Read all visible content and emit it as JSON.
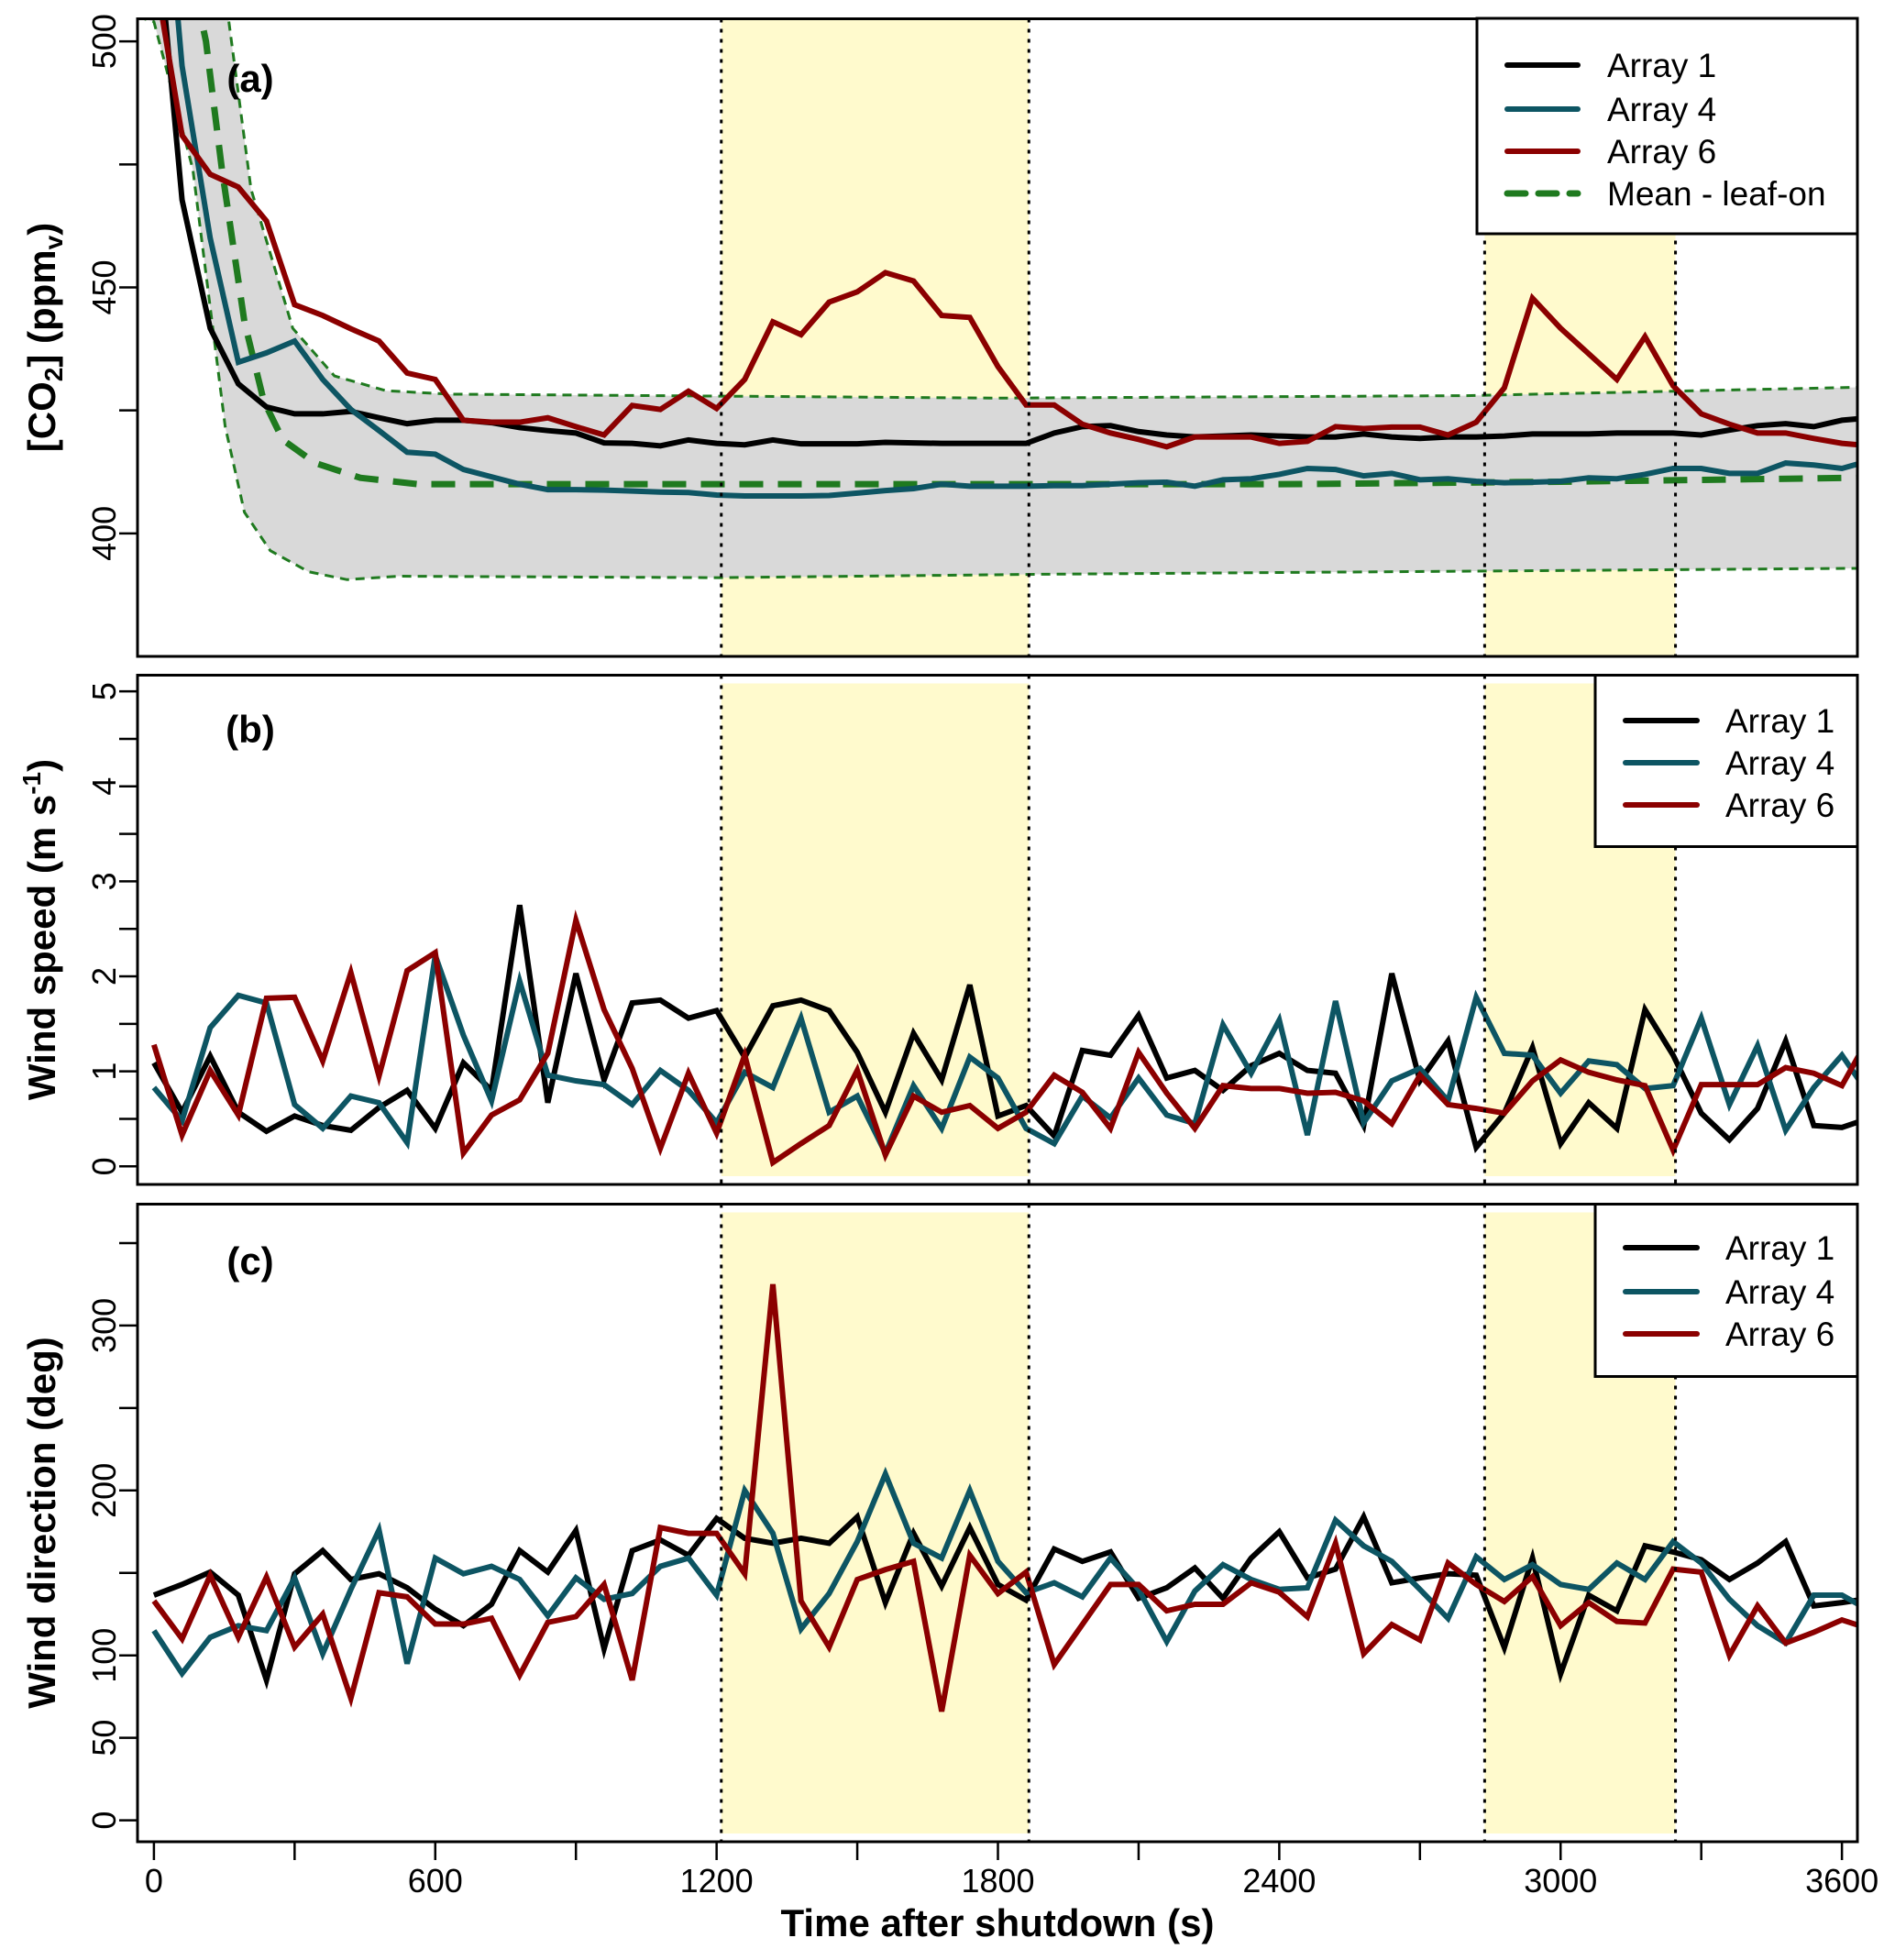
{
  "chart_data": [
    {
      "type": "line",
      "panel_label": "(a)",
      "ylabel": {
        "pre": "[CO",
        "sub": "2",
        "mid": "] (ppm",
        "sub2": "v",
        "post": ")"
      },
      "xlim": [
        -35,
        3633
      ],
      "ylim": [
        375,
        504.6
      ],
      "y_ticks": [
        400,
        425,
        450,
        475,
        500
      ],
      "y_tick_labels": [
        "400",
        "",
        "450",
        "",
        "500"
      ],
      "grid": false,
      "legend_position": "top-right",
      "highlight_intervals": [
        [
          1210,
          1866
        ],
        [
          2838,
          3245
        ]
      ],
      "x": [
        0,
        60,
        120,
        180,
        240,
        300,
        360,
        420,
        480,
        540,
        600,
        660,
        720,
        780,
        840,
        900,
        960,
        1020,
        1080,
        1140,
        1200,
        1260,
        1320,
        1380,
        1440,
        1500,
        1560,
        1620,
        1680,
        1740,
        1800,
        1860,
        1920,
        1980,
        2040,
        2100,
        2160,
        2220,
        2280,
        2340,
        2400,
        2460,
        2520,
        2580,
        2640,
        2700,
        2760,
        2820,
        2880,
        2940,
        3000,
        3060,
        3120,
        3180,
        3240,
        3300,
        3360,
        3420,
        3480,
        3540,
        3600,
        3660
      ],
      "series": [
        {
          "name": "Array 1",
          "color": "#000000",
          "values": [
            530,
            467.8,
            441.7,
            430.4,
            425.7,
            424.3,
            424.3,
            424.8,
            423.5,
            422.3,
            423,
            423,
            422.5,
            421.5,
            420.9,
            420.4,
            418.4,
            418.3,
            417.8,
            419,
            418.3,
            418,
            419,
            418.2,
            418.2,
            418.2,
            418.5,
            418.4,
            418.3,
            418.3,
            418.3,
            418.3,
            420.4,
            421.7,
            421.9,
            420.7,
            420,
            419.6,
            419.8,
            420,
            419.8,
            419.6,
            419.6,
            420.2,
            419.6,
            419.3,
            419.6,
            419.6,
            419.8,
            420.2,
            420.2,
            420.2,
            420.4,
            420.4,
            420.4,
            420,
            421,
            421.9,
            422.3,
            421.7,
            423,
            423.5
          ]
        },
        {
          "name": "Array 4",
          "color": "#0d5563",
          "values": [
            560,
            495,
            460,
            434.8,
            436.7,
            439.1,
            431.3,
            425.2,
            420.9,
            416.5,
            416.1,
            413,
            411.5,
            410,
            408.9,
            408.9,
            408.8,
            408.6,
            408.4,
            408.3,
            407.8,
            407.6,
            407.6,
            407.6,
            407.7,
            408.2,
            408.7,
            409.1,
            410,
            409.6,
            409.6,
            409.6,
            409.7,
            409.7,
            410,
            410.3,
            410.4,
            409.6,
            410.9,
            411.1,
            412,
            413.2,
            413,
            411.7,
            412.2,
            410.9,
            411.1,
            410.6,
            410.3,
            410.4,
            410.6,
            411.3,
            411.1,
            412,
            413.2,
            413.2,
            412.2,
            412.2,
            414.3,
            413.9,
            413.2,
            414.8
          ]
        },
        {
          "name": "Array 6",
          "color": "#8b0000",
          "values": [
            515,
            480.9,
            473,
            470.4,
            463.5,
            446.5,
            444.3,
            441.6,
            439.1,
            432.6,
            431.3,
            423,
            422.6,
            422.6,
            423.5,
            421.7,
            420,
            426,
            425.2,
            428.9,
            425.4,
            431.3,
            443,
            440.4,
            447,
            449.1,
            453,
            451.3,
            444.3,
            443.9,
            433.9,
            426.1,
            426.1,
            422.2,
            420.4,
            419.1,
            417.6,
            419.6,
            419.6,
            419.6,
            418.3,
            418.7,
            421.7,
            421.3,
            421.6,
            421.6,
            420,
            422.6,
            429.6,
            447.8,
            441.7,
            436.5,
            431.3,
            440,
            430,
            424.3,
            422.2,
            420.4,
            420.4,
            419.3,
            418.3,
            417.8
          ]
        }
      ],
      "mean": {
        "name": "Mean - leaf-on",
        "color": "#1f7a1f",
        "points": [
          [
            0,
            540
          ],
          [
            100,
            505
          ],
          [
            111,
            500
          ],
          [
            145,
            474
          ],
          [
            193,
            443
          ],
          [
            234,
            427
          ],
          [
            275,
            419
          ],
          [
            344,
            414.3
          ],
          [
            440,
            411.3
          ],
          [
            563,
            410
          ],
          [
            1200,
            410
          ],
          [
            2400,
            410
          ],
          [
            3000,
            410.5
          ],
          [
            3633,
            411.3
          ]
        ]
      },
      "envelope": {
        "color": "#d9d9d9",
        "upper": [
          [
            -35,
            560
          ],
          [
            100,
            540
          ],
          [
            159,
            504.6
          ],
          [
            207,
            470
          ],
          [
            296,
            441.7
          ],
          [
            385,
            432
          ],
          [
            495,
            429
          ],
          [
            632,
            428.3
          ],
          [
            1800,
            427.5
          ],
          [
            2800,
            428
          ],
          [
            3633,
            429.7
          ]
        ],
        "lower": [
          [
            -35,
            505
          ],
          [
            0,
            504
          ],
          [
            83,
            474
          ],
          [
            152,
            421.7
          ],
          [
            193,
            404.3
          ],
          [
            248,
            396.5
          ],
          [
            330,
            392.2
          ],
          [
            412,
            390.6
          ],
          [
            522,
            391.3
          ],
          [
            1200,
            391
          ],
          [
            1900,
            391.7
          ],
          [
            3633,
            392.9
          ]
        ]
      }
    },
    {
      "type": "line",
      "panel_label": "(b)",
      "ylabel": {
        "pre": "Wind speed (m s",
        "sup": "-1",
        "post": ")"
      },
      "xlim": [
        -35,
        3633
      ],
      "ylim": [
        -0.19,
        5.17
      ],
      "y_ticks": [
        0,
        0.5,
        1,
        1.5,
        2,
        2.5,
        3,
        3.5,
        4,
        4.5,
        5
      ],
      "y_tick_labels": [
        "0",
        "",
        "1",
        "",
        "2",
        "",
        "3",
        "",
        "4",
        "",
        "5"
      ],
      "grid": false,
      "legend_position": "top-right",
      "highlight_intervals": [
        [
          1210,
          1866
        ],
        [
          2838,
          3245
        ]
      ],
      "x": [
        0,
        60,
        120,
        180,
        240,
        300,
        360,
        420,
        480,
        540,
        600,
        660,
        720,
        780,
        840,
        900,
        960,
        1020,
        1080,
        1140,
        1200,
        1260,
        1320,
        1380,
        1440,
        1500,
        1560,
        1620,
        1680,
        1740,
        1800,
        1860,
        1920,
        1980,
        2040,
        2100,
        2160,
        2220,
        2280,
        2340,
        2400,
        2460,
        2520,
        2580,
        2640,
        2700,
        2760,
        2820,
        2880,
        2940,
        3000,
        3060,
        3120,
        3180,
        3240,
        3300,
        3360,
        3420,
        3480,
        3540,
        3600,
        3660
      ],
      "series": [
        {
          "name": "Array 1",
          "color": "#000000",
          "values": [
            1.09,
            0.57,
            1.16,
            0.57,
            0.37,
            0.53,
            0.43,
            0.38,
            0.62,
            0.8,
            0.4,
            1.09,
            0.8,
            2.75,
            0.67,
            2.03,
            0.91,
            1.72,
            1.75,
            1.56,
            1.64,
            1.15,
            1.69,
            1.75,
            1.64,
            1.2,
            0.57,
            1.4,
            0.91,
            1.91,
            0.53,
            0.64,
            0.32,
            1.22,
            1.17,
            1.59,
            0.93,
            1.01,
            0.8,
            1.06,
            1.19,
            1.01,
            0.98,
            0.43,
            2.03,
            0.9,
            1.32,
            0.2,
            0.56,
            1.25,
            0.24,
            0.67,
            0.4,
            1.65,
            1.17,
            0.56,
            0.28,
            0.61,
            1.32,
            0.43,
            0.41,
            0.51
          ]
        },
        {
          "name": "Array 4",
          "color": "#0d5563",
          "values": [
            0.83,
            0.48,
            1.46,
            1.8,
            1.72,
            0.65,
            0.4,
            0.74,
            0.67,
            0.25,
            2.22,
            1.38,
            0.69,
            1.95,
            0.96,
            0.9,
            0.86,
            0.65,
            1.01,
            0.8,
            0.46,
            0.99,
            0.83,
            1.56,
            0.57,
            0.74,
            0.14,
            0.85,
            0.4,
            1.15,
            0.93,
            0.4,
            0.24,
            0.74,
            0.51,
            0.93,
            0.54,
            0.45,
            1.49,
            0.98,
            1.54,
            0.33,
            1.74,
            0.46,
            0.9,
            1.03,
            0.69,
            1.78,
            1.19,
            1.17,
            0.77,
            1.11,
            1.07,
            0.82,
            0.85,
            1.56,
            0.65,
            1.27,
            0.38,
            0.83,
            1.17,
            0.74
          ]
        },
        {
          "name": "Array 6",
          "color": "#8b0000",
          "values": [
            1.28,
            0.33,
            1.01,
            0.54,
            1.77,
            1.78,
            1.11,
            2.04,
            0.95,
            2.06,
            2.25,
            0.14,
            0.54,
            0.7,
            1.19,
            2.59,
            1.65,
            1.03,
            0.19,
            0.98,
            0.35,
            1.17,
            0.04,
            0.24,
            0.43,
            1.01,
            0.12,
            0.74,
            0.57,
            0.64,
            0.4,
            0.57,
            0.96,
            0.78,
            0.4,
            1.2,
            0.77,
            0.4,
            0.85,
            0.82,
            0.82,
            0.77,
            0.78,
            0.69,
            0.45,
            0.96,
            0.65,
            0.61,
            0.56,
            0.9,
            1.12,
            0.99,
            0.91,
            0.85,
            0.17,
            0.86,
            0.86,
            0.86,
            1.04,
            0.98,
            0.85,
            1.38
          ]
        }
      ]
    },
    {
      "type": "line",
      "panel_label": "(c)",
      "ylabel": {
        "pre": "Wind direction (deg)"
      },
      "xlabel": "Time after shutdown (s)",
      "xlim": [
        -35,
        3633
      ],
      "ylim": [
        -13,
        373.6
      ],
      "x_ticks": [
        0,
        300,
        600,
        900,
        1200,
        1500,
        1800,
        2100,
        2400,
        2700,
        3000,
        3300,
        3600
      ],
      "x_tick_labels": [
        "0",
        "",
        "600",
        "",
        "1200",
        "",
        "1800",
        "",
        "2400",
        "",
        "3000",
        "",
        "3600"
      ],
      "y_ticks": [
        0,
        50,
        100,
        150,
        200,
        250,
        300,
        350
      ],
      "y_tick_labels": [
        "0",
        "50",
        "100",
        "",
        "200",
        "",
        "300",
        ""
      ],
      "grid": false,
      "legend_position": "top-right",
      "highlight_intervals": [
        [
          1210,
          1866
        ],
        [
          2838,
          3245
        ]
      ],
      "x": [
        0,
        60,
        120,
        180,
        240,
        300,
        360,
        420,
        480,
        540,
        600,
        660,
        720,
        780,
        840,
        900,
        960,
        1020,
        1080,
        1140,
        1200,
        1260,
        1320,
        1380,
        1440,
        1500,
        1560,
        1620,
        1680,
        1740,
        1800,
        1860,
        1920,
        1980,
        2040,
        2100,
        2160,
        2220,
        2280,
        2340,
        2400,
        2460,
        2520,
        2580,
        2640,
        2700,
        2760,
        2820,
        2880,
        2940,
        3000,
        3060,
        3120,
        3180,
        3240,
        3300,
        3360,
        3420,
        3480,
        3540,
        3600,
        3660
      ],
      "series": [
        {
          "name": "Array 1",
          "color": "#000000",
          "values": [
            136.5,
            143,
            150.5,
            136.5,
            85,
            149.5,
            163.5,
            146,
            149.5,
            141,
            128,
            118,
            131,
            163.5,
            150.5,
            175.7,
            104,
            163.5,
            170,
            160.7,
            183,
            171,
            168,
            171,
            168,
            184,
            132,
            174,
            142,
            177.5,
            143,
            133.5,
            164.5,
            157,
            162.7,
            134.6,
            141,
            153,
            134.6,
            159,
            175,
            147,
            152.3,
            184,
            144,
            147,
            149.5,
            148.6,
            104.7,
            159,
            88.8,
            136.5,
            127,
            166.4,
            162.7,
            158,
            146,
            156,
            169,
            130,
            132,
            134.6
          ]
        },
        {
          "name": "Array 4",
          "color": "#0d5563",
          "values": [
            115,
            89,
            111,
            118,
            115,
            147,
            101,
            140,
            176,
            95,
            159,
            149.5,
            154,
            146,
            124,
            147,
            134,
            137.5,
            154,
            159,
            136.5,
            200,
            174,
            116,
            137.5,
            169,
            210,
            168,
            159,
            200,
            157,
            138,
            144,
            135.5,
            159,
            140,
            108.4,
            139,
            155,
            146,
            140,
            141,
            182,
            166.4,
            157,
            140,
            122.4,
            159.8,
            146,
            155,
            143,
            140,
            156,
            146,
            169,
            156,
            134,
            118,
            107.5,
            136.5,
            136.5,
            127
          ]
        },
        {
          "name": "Array 6",
          "color": "#8b0000",
          "values": [
            133,
            110,
            148.5,
            111,
            147.5,
            105,
            125,
            74,
            138,
            135.5,
            119,
            119,
            122.5,
            88,
            120,
            123.5,
            143,
            85,
            177.5,
            174,
            174,
            149.5,
            325,
            133,
            105,
            146,
            152,
            157,
            66,
            160.7,
            137.5,
            150.5,
            94.4,
            118.7,
            143,
            143,
            127,
            131,
            131,
            144,
            138.3,
            123.4,
            168,
            101,
            118.7,
            109.3,
            156,
            143,
            132.7,
            147.7,
            118,
            132,
            120.6,
            119.6,
            152.3,
            150.5,
            100,
            130,
            107.5,
            114,
            121.5,
            116
          ]
        }
      ]
    }
  ],
  "colors": {
    "highlight": "#fffacd",
    "frame": "#000000"
  }
}
